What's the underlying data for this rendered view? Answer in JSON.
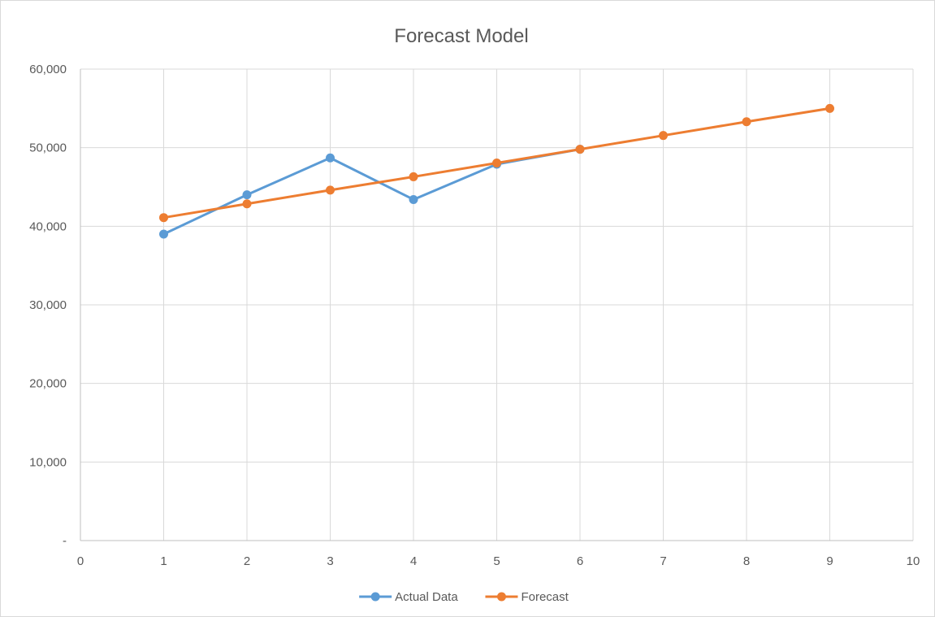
{
  "chart_data": {
    "type": "line",
    "title": "Forecast Model",
    "xlabel": "",
    "ylabel": "",
    "xlim": [
      0,
      10
    ],
    "ylim": [
      0,
      60000
    ],
    "x_ticks": [
      "0",
      "1",
      "2",
      "3",
      "4",
      "5",
      "6",
      "7",
      "8",
      "9",
      "10"
    ],
    "y_ticks": [
      "-",
      "10,000",
      "20,000",
      "30,000",
      "40,000",
      "50,000",
      "60,000"
    ],
    "grid": true,
    "legend_position": "bottom",
    "series": [
      {
        "name": "Actual Data",
        "color": "#5B9BD5",
        "x": [
          1,
          2,
          3,
          4,
          5,
          6
        ],
        "y": [
          39000,
          44000,
          48700,
          43400,
          47900,
          49800
        ]
      },
      {
        "name": "Forecast",
        "color": "#ED7D31",
        "x": [
          1,
          2,
          3,
          4,
          5,
          6,
          7,
          8,
          9
        ],
        "y": [
          41100,
          42850,
          44600,
          46300,
          48050,
          49800,
          51550,
          53300,
          55000
        ]
      }
    ]
  }
}
